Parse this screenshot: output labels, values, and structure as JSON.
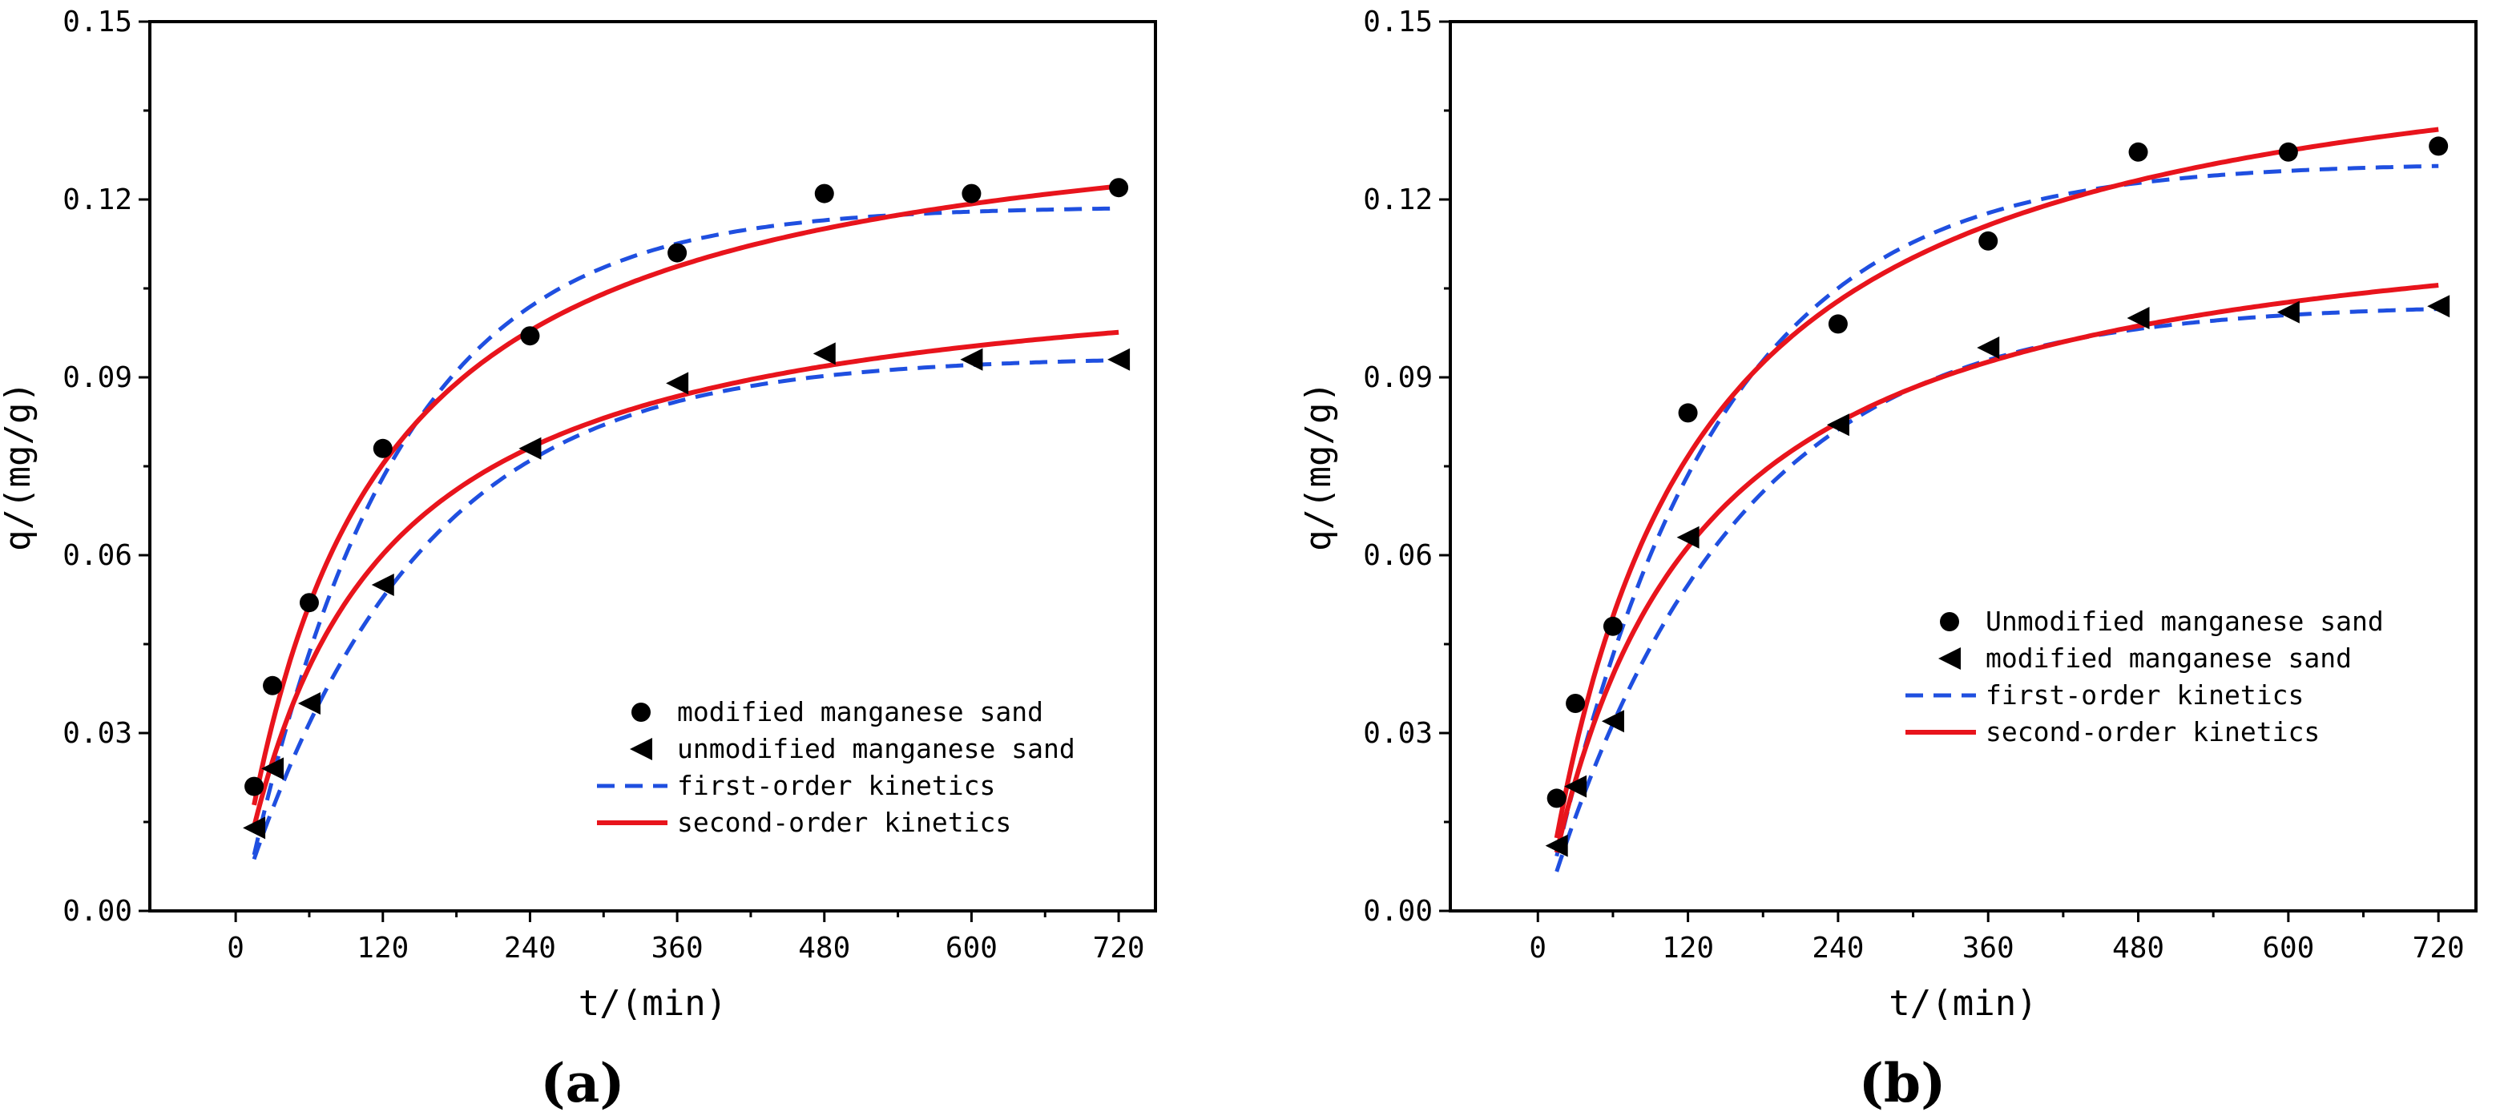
{
  "chart_data": [
    {
      "type": "scatter",
      "panel": "a",
      "caption": "(a)",
      "xlabel": "t/(min)",
      "ylabel": "q/(mg/g)",
      "xlim": [
        -70,
        750
      ],
      "ylim": [
        0,
        0.15
      ],
      "xticks": [
        0,
        120,
        240,
        360,
        480,
        600,
        720
      ],
      "xtick_labels": [
        "0",
        "120",
        "240",
        "360",
        "480",
        "600",
        "720"
      ],
      "yticks": [
        0,
        0.03,
        0.06,
        0.09,
        0.12,
        0.15
      ],
      "ytick_labels": [
        "0.00",
        "0.03",
        "0.06",
        "0.09",
        "0.12",
        "0.15"
      ],
      "legend_position": "bottom-right",
      "legend": [
        {
          "label": "modified manganese sand",
          "marker": "circle"
        },
        {
          "label": "unmodified manganese sand",
          "marker": "left-triangle"
        },
        {
          "label": "first-order kinetics",
          "line": "dashed",
          "color": "#1f4fe0"
        },
        {
          "label": "second-order kinetics",
          "line": "solid",
          "color": "#e8141c"
        }
      ],
      "series": [
        {
          "name": "modified manganese sand",
          "marker": "circle",
          "x": [
            15,
            30,
            60,
            120,
            240,
            360,
            480,
            600,
            720
          ],
          "y": [
            0.021,
            0.038,
            0.052,
            0.078,
            0.097,
            0.111,
            0.121,
            0.121,
            0.122
          ]
        },
        {
          "name": "unmodified manganese sand",
          "marker": "left-triangle",
          "x": [
            15,
            30,
            60,
            120,
            240,
            360,
            480,
            600,
            720
          ],
          "y": [
            0.014,
            0.024,
            0.035,
            0.055,
            0.078,
            0.089,
            0.094,
            0.093,
            0.093
          ]
        }
      ],
      "fits": [
        {
          "name": "first-order kinetics",
          "style": "dashed",
          "color": "#1f4fe0",
          "model": "first-order",
          "qe": 0.1188,
          "k": 0.0083,
          "t0": 5,
          "x": [
            15,
            720
          ]
        },
        {
          "name": "second-order kinetics",
          "style": "solid",
          "color": "#e8141c",
          "model": "second-order",
          "qe": 0.1396,
          "k": 0.07,
          "t0": 0,
          "x": [
            15,
            720
          ]
        },
        {
          "name": "first-order kinetics",
          "style": "dashed",
          "color": "#1f4fe0",
          "model": "first-order",
          "qe": 0.0935,
          "k": 0.007,
          "t0": 1,
          "x": [
            15,
            720
          ]
        },
        {
          "name": "second-order kinetics",
          "style": "solid",
          "color": "#e8141c",
          "model": "second-order",
          "qe": 0.1115,
          "k": 0.0875,
          "t0": 0,
          "x": [
            15,
            720
          ]
        }
      ]
    },
    {
      "type": "scatter",
      "panel": "b",
      "caption": "(b)",
      "xlabel": "t/(min)",
      "ylabel": "q/(mg/g)",
      "xlim": [
        -70,
        750
      ],
      "ylim": [
        0,
        0.15
      ],
      "xticks": [
        0,
        120,
        240,
        360,
        480,
        600,
        720
      ],
      "xtick_labels": [
        "0",
        "120",
        "240",
        "360",
        "480",
        "600",
        "720"
      ],
      "yticks": [
        0,
        0.03,
        0.06,
        0.09,
        0.12,
        0.15
      ],
      "ytick_labels": [
        "0.00",
        "0.03",
        "0.06",
        "0.09",
        "0.12",
        "0.15"
      ],
      "legend_position": "middle-right",
      "legend": [
        {
          "label": "Unmodified manganese sand",
          "marker": "circle"
        },
        {
          "label": "modified manganese sand",
          "marker": "left-triangle"
        },
        {
          "label": "first-order kinetics",
          "line": "dashed",
          "color": "#1f4fe0"
        },
        {
          "label": "second-order kinetics",
          "line": "solid",
          "color": "#e8141c"
        }
      ],
      "series": [
        {
          "name": "Unmodified manganese sand",
          "marker": "circle",
          "x": [
            15,
            30,
            60,
            120,
            240,
            360,
            480,
            600,
            720
          ],
          "y": [
            0.019,
            0.035,
            0.048,
            0.084,
            0.099,
            0.113,
            0.128,
            0.128,
            0.129
          ]
        },
        {
          "name": "modified manganese sand",
          "marker": "left-triangle",
          "x": [
            15,
            30,
            60,
            120,
            240,
            360,
            480,
            600,
            720
          ],
          "y": [
            0.011,
            0.021,
            0.032,
            0.063,
            0.082,
            0.095,
            0.1,
            0.101,
            0.102
          ]
        }
      ],
      "fits": [
        {
          "name": "first-order kinetics",
          "style": "dashed",
          "color": "#1f4fe0",
          "model": "first-order",
          "qe": 0.1262,
          "k": 0.0076,
          "t0": 5,
          "x": [
            15,
            720
          ]
        },
        {
          "name": "second-order kinetics",
          "style": "solid",
          "color": "#e8141c",
          "model": "second-order",
          "qe": 0.1529,
          "k": 0.0572,
          "t0": 5,
          "x": [
            15,
            720
          ]
        },
        {
          "name": "first-order kinetics",
          "style": "dashed",
          "color": "#1f4fe0",
          "model": "first-order",
          "qe": 0.1024,
          "k": 0.0067,
          "t0": 5,
          "x": [
            15,
            720
          ]
        },
        {
          "name": "second-order kinetics",
          "style": "solid",
          "color": "#e8141c",
          "model": "second-order",
          "qe": 0.1224,
          "k": 0.0715,
          "t0": 5,
          "x": [
            15,
            720
          ]
        }
      ]
    }
  ]
}
